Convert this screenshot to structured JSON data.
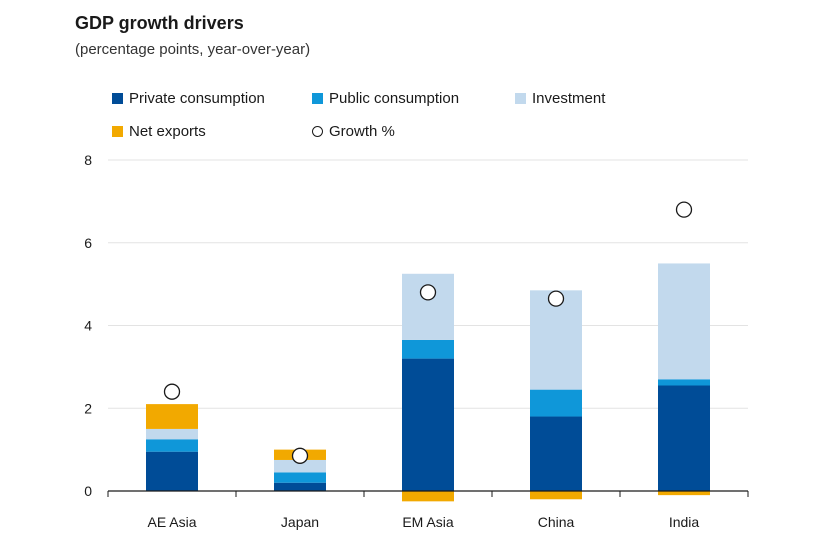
{
  "chart_data": {
    "type": "bar",
    "stacked": true,
    "title": "GDP growth drivers",
    "subtitle": "(percentage points, year-over-year)",
    "categories": [
      "AE Asia",
      "Japan",
      "EM Asia",
      "China",
      "India"
    ],
    "series": [
      {
        "name": "Private consumption",
        "color": "#004c97",
        "values": [
          0.95,
          0.2,
          3.2,
          1.8,
          2.55
        ]
      },
      {
        "name": "Public consumption",
        "color": "#0f97d9",
        "values": [
          0.3,
          0.25,
          0.45,
          0.65,
          0.15
        ]
      },
      {
        "name": "Investment",
        "color": "#c2d9ed",
        "values": [
          0.25,
          0.3,
          1.6,
          2.4,
          2.8
        ]
      },
      {
        "name": "Net exports",
        "color": "#f2a900",
        "values": [
          0.6,
          0.25,
          -0.25,
          -0.2,
          -0.1
        ]
      }
    ],
    "markers": {
      "name": "Growth %",
      "values": [
        2.4,
        0.85,
        4.8,
        4.65,
        6.8
      ]
    },
    "ylim": [
      0,
      8
    ],
    "yticks": [
      0,
      2,
      4,
      6,
      8
    ],
    "grid": true,
    "legend_position": "top-left"
  }
}
